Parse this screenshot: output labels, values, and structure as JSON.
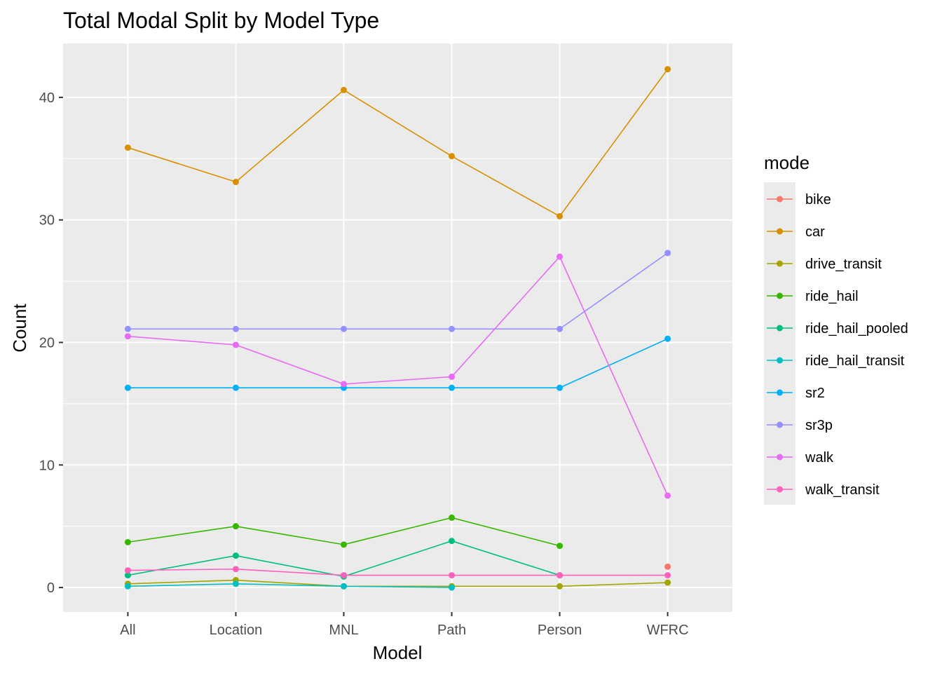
{
  "chart_data": {
    "type": "line",
    "title": "Total Modal Split by Model Type",
    "xlabel": "Model",
    "ylabel": "Count",
    "categories": [
      "All",
      "Location",
      "MNL",
      "Path",
      "Person",
      "WFRC"
    ],
    "ylim": [
      -2,
      44.4
    ],
    "yticks": [
      0,
      10,
      20,
      30,
      40
    ],
    "grid": true,
    "legend": {
      "title": "mode",
      "position": "right"
    },
    "series": [
      {
        "name": "bike",
        "color": "#F8766D",
        "values": [
          null,
          null,
          null,
          null,
          null,
          1.7
        ]
      },
      {
        "name": "car",
        "color": "#D89000",
        "values": [
          35.9,
          33.1,
          40.6,
          35.2,
          30.3,
          42.3
        ]
      },
      {
        "name": "drive_transit",
        "color": "#A3A500",
        "values": [
          0.3,
          0.6,
          0.1,
          0.1,
          0.1,
          0.4
        ]
      },
      {
        "name": "ride_hail",
        "color": "#39B600",
        "values": [
          3.7,
          5.0,
          3.5,
          5.7,
          3.4,
          null
        ]
      },
      {
        "name": "ride_hail_pooled",
        "color": "#00BF7D",
        "values": [
          1.0,
          2.6,
          0.9,
          3.8,
          1.0,
          null
        ]
      },
      {
        "name": "ride_hail_transit",
        "color": "#00BFC4",
        "values": [
          0.1,
          0.3,
          0.1,
          0.0,
          null,
          null
        ]
      },
      {
        "name": "sr2",
        "color": "#00B0F6",
        "values": [
          16.3,
          16.3,
          16.3,
          16.3,
          16.3,
          20.3
        ]
      },
      {
        "name": "sr3p",
        "color": "#9590FF",
        "values": [
          21.1,
          21.1,
          21.1,
          21.1,
          21.1,
          27.3
        ]
      },
      {
        "name": "walk",
        "color": "#E76BF3",
        "values": [
          20.5,
          19.8,
          16.6,
          17.2,
          27.0,
          7.5
        ]
      },
      {
        "name": "walk_transit",
        "color": "#FF62BC",
        "values": [
          1.4,
          1.5,
          1.0,
          1.0,
          1.0,
          1.0
        ]
      }
    ]
  }
}
